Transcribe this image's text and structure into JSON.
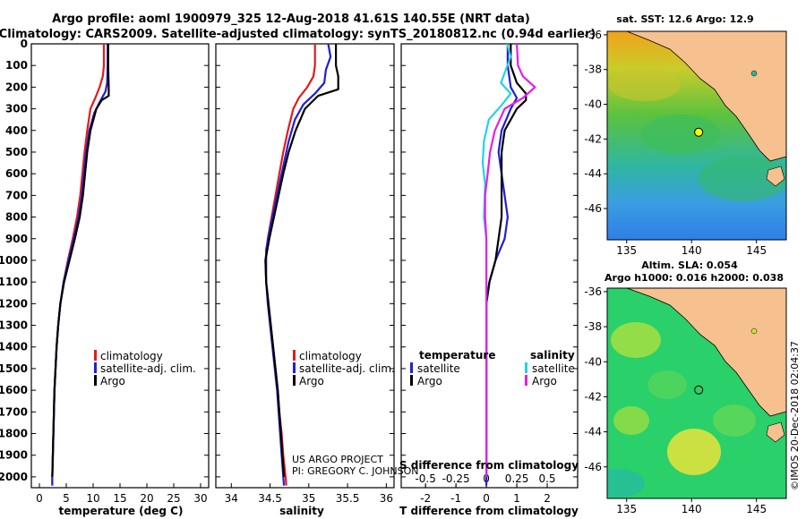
{
  "header": {
    "line1": "Argo profile: aoml 1900979_325 12-Aug-2018 41.61S 140.55E (NRT data)",
    "line2": "Climatology: CARS2009. Satellite-adjusted climatology: synTS_20180812.nc (0.94d earlier)"
  },
  "colors": {
    "climatology": "#e41a1c",
    "satellite": "#1f1fd6",
    "argo": "#000000",
    "sat_salinity": "#22d3e6",
    "argo_salinity": "#e61ee6"
  },
  "chart_data": [
    {
      "type": "line",
      "xlabel": "temperature (deg C)",
      "ylabel": "",
      "xlim": [
        -1.5,
        31.5
      ],
      "ylim": [
        2050,
        0
      ],
      "xticks": [
        0,
        5,
        10,
        15,
        20,
        25,
        30
      ],
      "yticks": [
        0,
        100,
        200,
        300,
        400,
        500,
        600,
        700,
        800,
        900,
        1000,
        1100,
        1200,
        1300,
        1400,
        1500,
        1600,
        1700,
        1800,
        1900,
        2000
      ],
      "legend": [
        "climatology",
        "satellite-adj. clim.",
        "Argo"
      ],
      "series": [
        {
          "name": "climatology",
          "color": "#e41a1c",
          "points": [
            [
              12.0,
              0
            ],
            [
              12.0,
              100
            ],
            [
              11.8,
              150
            ],
            [
              11.2,
              200
            ],
            [
              10.4,
              250
            ],
            [
              9.5,
              300
            ],
            [
              8.9,
              400
            ],
            [
              8.4,
              500
            ],
            [
              8.0,
              600
            ],
            [
              7.6,
              700
            ],
            [
              7.0,
              800
            ],
            [
              6.2,
              900
            ],
            [
              5.3,
              1000
            ],
            [
              4.5,
              1100
            ],
            [
              3.9,
              1200
            ],
            [
              3.5,
              1300
            ],
            [
              3.2,
              1400
            ],
            [
              3.0,
              1500
            ],
            [
              2.8,
              1600
            ],
            [
              2.7,
              1700
            ],
            [
              2.6,
              1800
            ],
            [
              2.5,
              1900
            ],
            [
              2.4,
              2000
            ],
            [
              2.4,
              2040
            ]
          ]
        },
        {
          "name": "satellite-adj. clim.",
          "color": "#1f1fd6",
          "points": [
            [
              12.7,
              0
            ],
            [
              12.7,
              100
            ],
            [
              12.6,
              180
            ],
            [
              12.3,
              220
            ],
            [
              11.2,
              270
            ],
            [
              10.2,
              320
            ],
            [
              9.3,
              400
            ],
            [
              8.7,
              500
            ],
            [
              8.3,
              600
            ],
            [
              7.9,
              700
            ],
            [
              7.3,
              800
            ],
            [
              6.4,
              900
            ],
            [
              5.4,
              1000
            ],
            [
              4.5,
              1100
            ],
            [
              3.9,
              1200
            ],
            [
              3.5,
              1300
            ],
            [
              3.2,
              1400
            ],
            [
              3.0,
              1500
            ],
            [
              2.8,
              1600
            ],
            [
              2.7,
              1700
            ],
            [
              2.6,
              1800
            ],
            [
              2.5,
              1900
            ],
            [
              2.4,
              2000
            ],
            [
              2.4,
              2040
            ]
          ]
        },
        {
          "name": "Argo",
          "color": "#000000",
          "points": [
            [
              12.8,
              0
            ],
            [
              12.8,
              100
            ],
            [
              12.9,
              200
            ],
            [
              12.9,
              240
            ],
            [
              11.6,
              260
            ],
            [
              10.6,
              300
            ],
            [
              9.5,
              400
            ],
            [
              8.9,
              500
            ],
            [
              8.5,
              600
            ],
            [
              8.1,
              700
            ],
            [
              7.5,
              800
            ],
            [
              6.6,
              900
            ],
            [
              5.6,
              1000
            ],
            [
              4.6,
              1100
            ],
            [
              3.9,
              1200
            ],
            [
              3.5,
              1300
            ],
            [
              3.2,
              1400
            ],
            [
              3.0,
              1500
            ],
            [
              2.8,
              1600
            ],
            [
              2.7,
              1700
            ],
            [
              2.6,
              1800
            ],
            [
              2.5,
              1900
            ],
            [
              2.4,
              2000
            ]
          ]
        }
      ]
    },
    {
      "type": "line",
      "xlabel": "salinity",
      "ylabel": "",
      "xlim": [
        33.8,
        36.1
      ],
      "ylim": [
        2050,
        0
      ],
      "xticks": [
        34,
        34.5,
        35,
        35.5,
        36
      ],
      "xticklabels": [
        "34",
        "34.5",
        "35",
        "35.5",
        "36"
      ],
      "legend": [
        "climatology",
        "satellite-adj. clim.",
        "Argo"
      ],
      "annotation": [
        "US ARGO PROJECT",
        "PI: GREGORY C. JOHNSON"
      ],
      "series": [
        {
          "name": "climatology",
          "color": "#e41a1c",
          "points": [
            [
              35.08,
              0
            ],
            [
              35.08,
              100
            ],
            [
              35.06,
              150
            ],
            [
              34.98,
              200
            ],
            [
              34.87,
              250
            ],
            [
              34.8,
              300
            ],
            [
              34.73,
              400
            ],
            [
              34.67,
              500
            ],
            [
              34.62,
              600
            ],
            [
              34.57,
              700
            ],
            [
              34.52,
              800
            ],
            [
              34.47,
              900
            ],
            [
              34.44,
              1000
            ],
            [
              34.45,
              1100
            ],
            [
              34.48,
              1200
            ],
            [
              34.51,
              1300
            ],
            [
              34.54,
              1400
            ],
            [
              34.57,
              1500
            ],
            [
              34.6,
              1600
            ],
            [
              34.62,
              1700
            ],
            [
              34.65,
              1800
            ],
            [
              34.67,
              1900
            ],
            [
              34.7,
              2000
            ],
            [
              34.71,
              2040
            ]
          ]
        },
        {
          "name": "satellite-adj. clim.",
          "color": "#1f1fd6",
          "points": [
            [
              35.25,
              0
            ],
            [
              35.28,
              60
            ],
            [
              35.22,
              120
            ],
            [
              35.2,
              180
            ],
            [
              35.08,
              230
            ],
            [
              34.93,
              280
            ],
            [
              34.82,
              350
            ],
            [
              34.74,
              450
            ],
            [
              34.68,
              550
            ],
            [
              34.62,
              650
            ],
            [
              34.56,
              750
            ],
            [
              34.5,
              850
            ],
            [
              34.45,
              950
            ],
            [
              34.45,
              1100
            ],
            [
              34.47,
              1200
            ],
            [
              34.5,
              1300
            ],
            [
              34.53,
              1400
            ],
            [
              34.56,
              1500
            ],
            [
              34.59,
              1600
            ],
            [
              34.61,
              1700
            ],
            [
              34.63,
              1800
            ],
            [
              34.65,
              1900
            ],
            [
              34.67,
              2000
            ],
            [
              34.68,
              2040
            ]
          ]
        },
        {
          "name": "Argo",
          "color": "#000000",
          "points": [
            [
              35.35,
              0
            ],
            [
              35.35,
              100
            ],
            [
              35.38,
              150
            ],
            [
              35.38,
              210
            ],
            [
              35.12,
              240
            ],
            [
              34.95,
              300
            ],
            [
              34.83,
              400
            ],
            [
              34.74,
              500
            ],
            [
              34.67,
              600
            ],
            [
              34.61,
              700
            ],
            [
              34.55,
              800
            ],
            [
              34.49,
              900
            ],
            [
              34.44,
              1000
            ],
            [
              34.45,
              1100
            ],
            [
              34.48,
              1200
            ],
            [
              34.51,
              1300
            ],
            [
              34.54,
              1400
            ],
            [
              34.57,
              1500
            ],
            [
              34.6,
              1600
            ],
            [
              34.62,
              1700
            ],
            [
              34.64,
              1800
            ],
            [
              34.66,
              1900
            ],
            [
              34.68,
              2000
            ]
          ]
        }
      ]
    },
    {
      "type": "line",
      "xlabel": "T difference from climatology",
      "xlabel_top": "S difference from climatology",
      "xlim": [
        -2.8,
        3.0
      ],
      "ylim": [
        2050,
        0
      ],
      "xticks": [
        -2,
        -1,
        0,
        1,
        2
      ],
      "xticks_top": [
        -0.5,
        -0.25,
        0,
        0.25,
        0.5
      ],
      "xticklabels_top": [
        "-0.5",
        "-0.25",
        "0",
        "0.25",
        "0.5"
      ],
      "legend_left_title": "temperature",
      "legend_left": [
        "satellite",
        "Argo"
      ],
      "legend_right_title": "salinity",
      "legend_right": [
        "satellite",
        "Argo"
      ],
      "series": [
        {
          "name": "temperature satellite",
          "color": "#1f1fd6",
          "points": [
            [
              0.7,
              0
            ],
            [
              0.7,
              100
            ],
            [
              0.8,
              200
            ],
            [
              1.0,
              250
            ],
            [
              0.8,
              300
            ],
            [
              0.5,
              400
            ],
            [
              0.4,
              500
            ],
            [
              0.5,
              600
            ],
            [
              0.6,
              700
            ],
            [
              0.7,
              800
            ],
            [
              0.6,
              900
            ],
            [
              0.3,
              1000
            ],
            [
              0.1,
              1100
            ],
            [
              0.0,
              1200
            ],
            [
              0.0,
              1400
            ],
            [
              0.0,
              1600
            ],
            [
              0.0,
              1800
            ],
            [
              0.0,
              2000
            ],
            [
              0.0,
              2040
            ]
          ]
        },
        {
          "name": "temperature Argo",
          "color": "#000000",
          "points": [
            [
              0.8,
              0
            ],
            [
              0.8,
              100
            ],
            [
              1.0,
              180
            ],
            [
              1.3,
              230
            ],
            [
              1.3,
              260
            ],
            [
              1.0,
              300
            ],
            [
              0.6,
              400
            ],
            [
              0.5,
              500
            ],
            [
              0.5,
              600
            ],
            [
              0.5,
              700
            ],
            [
              0.5,
              800
            ],
            [
              0.4,
              900
            ],
            [
              0.3,
              1000
            ],
            [
              0.1,
              1100
            ],
            [
              0.0,
              1200
            ],
            [
              0.0,
              1400
            ],
            [
              0.0,
              1600
            ],
            [
              0.0,
              1800
            ],
            [
              0.0,
              2000
            ]
          ]
        },
        {
          "name": "salinity satellite",
          "color": "#22d3e6",
          "points": [
            [
              0.17,
              0
            ],
            [
              0.2,
              60
            ],
            [
              0.16,
              120
            ],
            [
              0.12,
              180
            ],
            [
              0.2,
              230
            ],
            [
              0.13,
              280
            ],
            [
              0.02,
              350
            ],
            [
              -0.02,
              450
            ],
            [
              -0.03,
              550
            ],
            [
              -0.01,
              650
            ],
            [
              -0.02,
              800
            ],
            [
              0.0,
              900
            ],
            [
              0.0,
              1000
            ],
            [
              0.0,
              1200
            ],
            [
              0.0,
              1400
            ],
            [
              0.0,
              1600
            ],
            [
              0.0,
              1800
            ],
            [
              0.0,
              2000
            ]
          ]
        },
        {
          "name": "salinity Argo",
          "color": "#e61ee6",
          "points": [
            [
              0.25,
              0
            ],
            [
              0.26,
              100
            ],
            [
              0.3,
              150
            ],
            [
              0.4,
              200
            ],
            [
              0.3,
              250
            ],
            [
              0.15,
              300
            ],
            [
              0.07,
              400
            ],
            [
              0.03,
              500
            ],
            [
              0.01,
              600
            ],
            [
              -0.01,
              700
            ],
            [
              -0.01,
              800
            ],
            [
              0.0,
              900
            ],
            [
              0.0,
              1000
            ],
            [
              0.0,
              1200
            ],
            [
              0.0,
              1400
            ],
            [
              0.0,
              1600
            ],
            [
              0.0,
              1800
            ],
            [
              0.0,
              2000
            ]
          ]
        }
      ]
    },
    {
      "type": "heatmap",
      "title": "sat. SST: 12.6 Argo: 12.9",
      "xlim": [
        133.5,
        147.3
      ],
      "ylim": [
        -47.8,
        -35.8
      ],
      "xticks": [
        135,
        140,
        145
      ],
      "yticks": [
        -36,
        -38,
        -40,
        -42,
        -44,
        -46
      ],
      "marker": {
        "lon": 140.55,
        "lat": -41.61
      }
    },
    {
      "type": "heatmap",
      "title": [
        "Altim. SLA: 0.054",
        "Argo h1000: 0.016 h2000: 0.038"
      ],
      "xlim": [
        133.5,
        147.3
      ],
      "ylim": [
        -47.8,
        -35.8
      ],
      "xticks": [
        135,
        140,
        145
      ],
      "yticks": [
        -36,
        -38,
        -40,
        -42,
        -44,
        -46
      ],
      "marker": {
        "lon": 140.55,
        "lat": -41.61
      }
    }
  ],
  "footer": {
    "credit": "©IMOS 20-Dec-2018 02:04:37"
  }
}
